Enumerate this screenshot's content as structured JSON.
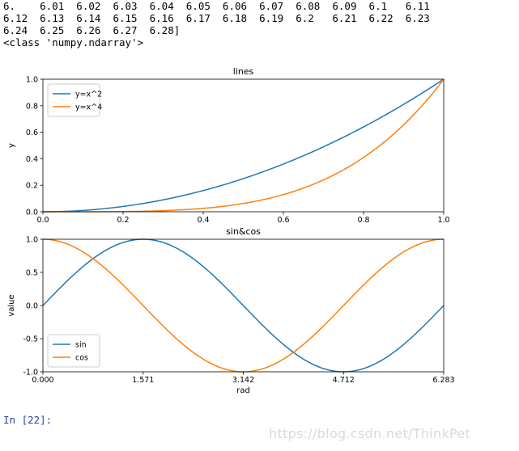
{
  "output": {
    "lines": [
      "6.    6.01  6.02  6.03  6.04  6.05  6.06  6.07  6.08  6.09  6.1   6.11",
      "6.12  6.13  6.14  6.15  6.16  6.17  6.18  6.19  6.2   6.21  6.22  6.23",
      "6.24  6.25  6.26  6.27  6.28]"
    ],
    "type_line": "<class 'numpy.ndarray'>"
  },
  "prompt": {
    "label": "In [22]:"
  },
  "watermark": "https://blog.csdn.net/ThinkPet",
  "colors": {
    "series1": "#1f77b4",
    "series2": "#ff7f0e",
    "prompt": "#303f9f"
  },
  "chart_data": [
    {
      "type": "line",
      "title": "lines",
      "xlabel": "",
      "ylabel": "y",
      "xlim": [
        0,
        1
      ],
      "ylim": [
        0,
        1
      ],
      "xticks": [
        "0.0",
        "0.2",
        "0.4",
        "0.6",
        "0.8",
        "1.0"
      ],
      "yticks": [
        "0.0",
        "0.2",
        "0.4",
        "0.6",
        "0.8",
        "1.0"
      ],
      "legend": "upper-left",
      "series": [
        {
          "name": "y=x^2",
          "color": "#1f77b4",
          "function": "x^2",
          "x_range": [
            0,
            1
          ]
        },
        {
          "name": "y=x^4",
          "color": "#ff7f0e",
          "function": "x^4",
          "x_range": [
            0,
            1
          ]
        }
      ]
    },
    {
      "type": "line",
      "title": "sin&cos",
      "xlabel": "rad",
      "ylabel": "value",
      "xlim": [
        0,
        6.283
      ],
      "ylim": [
        -1,
        1
      ],
      "xticks": [
        "0.000",
        "1.571",
        "3.142",
        "4.712",
        "6.283"
      ],
      "yticks": [
        "-1.0",
        "-0.5",
        "0.0",
        "0.5",
        "1.0"
      ],
      "legend": "lower-left",
      "series": [
        {
          "name": "sin",
          "color": "#1f77b4",
          "function": "sin(x)",
          "x_range": [
            0,
            6.283
          ]
        },
        {
          "name": "cos",
          "color": "#ff7f0e",
          "function": "cos(x)",
          "x_range": [
            0,
            6.283
          ]
        }
      ]
    }
  ]
}
